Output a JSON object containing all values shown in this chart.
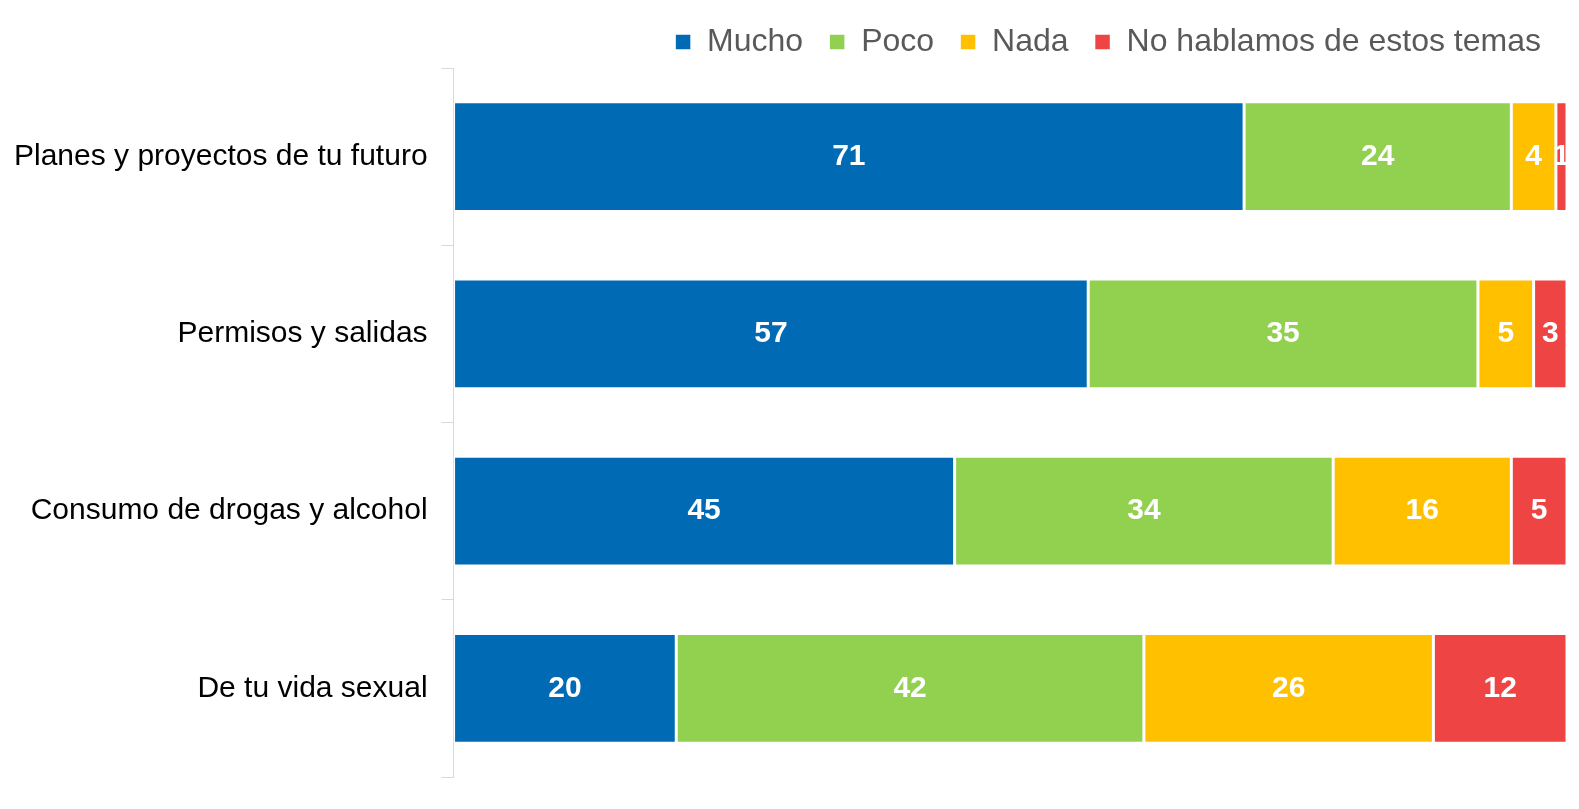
{
  "chart_data": {
    "type": "bar",
    "orientation": "horizontal",
    "stacked": true,
    "data_labels": true,
    "legend": "top right",
    "grid": false,
    "tick_labels": "y",
    "categories": [
      "Planes y proyectos de tu futuro",
      "Permisos y salidas",
      "Consumo de drogas y alcohol",
      "De tu vida sexual"
    ],
    "series": [
      {
        "name": "Mucho",
        "color": "#006ab5",
        "values": [
          71,
          57,
          45,
          20
        ]
      },
      {
        "name": "Poco",
        "color": "#92d050",
        "values": [
          24,
          35,
          34,
          42
        ]
      },
      {
        "name": "Nada",
        "color": "#ffc000",
        "values": [
          4,
          5,
          16,
          26
        ]
      },
      {
        "name": "No hablamos de estos temas",
        "color": "#ef4444",
        "values": [
          1,
          3,
          5,
          12
        ]
      }
    ]
  }
}
